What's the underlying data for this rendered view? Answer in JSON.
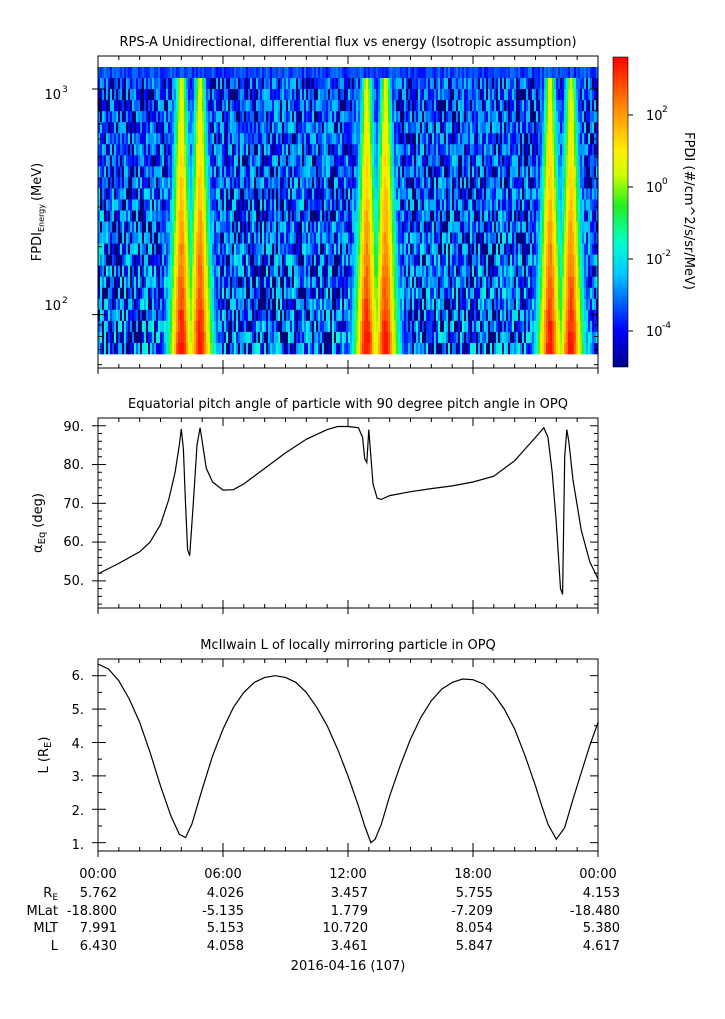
{
  "panels": {
    "spectrogram": {
      "title": "RPS-A Unidirectional, differential flux vs energy (Isotropic assumption)",
      "ylabel_main": "FPDI",
      "ylabel_sub": "Energy",
      "ylabel_unit": "(MeV)",
      "ytick_labels": [
        "10",
        "10"
      ],
      "ytick_exps": [
        "3",
        "2"
      ],
      "colorbar_label": "FPDI (#/cm^2/s/sr/MeV)",
      "colorbar_tick_base": [
        "10",
        "10",
        "10",
        "10"
      ],
      "colorbar_tick_exps": [
        "2",
        "0",
        "-2",
        "-4"
      ]
    },
    "pitch": {
      "title": "Equatorial pitch angle of particle with 90 degree pitch angle in OPQ",
      "ylabel": "α",
      "ylabel_sub": "Eq",
      "ylabel_unit": "(deg)",
      "ytick_labels": [
        "90.",
        "80.",
        "70.",
        "60.",
        "50."
      ]
    },
    "lshell": {
      "title": "McIlwain L of locally mirroring particle in OPQ",
      "ylabel": "L (R",
      "ylabel_sub": "E",
      "ylabel_end": ")",
      "ytick_labels": [
        "6.",
        "5.",
        "4.",
        "3.",
        "2.",
        "1."
      ]
    }
  },
  "xaxis": {
    "tick_labels": [
      "00:00",
      "06:00",
      "12:00",
      "18:00",
      "00:00"
    ],
    "date_label": "2016-04-16 (107)"
  },
  "ephemeris": {
    "rows": [
      {
        "label": "R",
        "label_sub": "E",
        "values": [
          "5.762",
          "4.026",
          "3.457",
          "5.755",
          "4.153"
        ]
      },
      {
        "label": "MLat",
        "label_sub": "",
        "values": [
          "-18.800",
          "-5.135",
          "1.779",
          "-7.209",
          "-18.480"
        ]
      },
      {
        "label": "MLT",
        "label_sub": "",
        "values": [
          "7.991",
          "5.153",
          "10.720",
          "8.054",
          "5.380"
        ]
      },
      {
        "label": "L",
        "label_sub": "",
        "values": [
          "6.430",
          "4.058",
          "3.461",
          "5.847",
          "4.617"
        ]
      }
    ]
  },
  "chart_data": [
    {
      "type": "heatmap",
      "title": "RPS-A Unidirectional, differential flux vs energy (Isotropic assumption)",
      "xlabel": "",
      "ylabel": "FPDI Energy (MeV)",
      "yscale": "log",
      "ylim": [
        58,
        1400
      ],
      "xlim_hours": [
        0,
        24
      ],
      "colorbar": {
        "label": "FPDI (#/cm^2/s/sr/MeV)",
        "scale": "log",
        "range": [
          1e-05,
          1000.0
        ],
        "ticks": [
          "10^2",
          "10^0",
          "10^-2",
          "10^-4"
        ]
      },
      "flux_peaks_hours": [
        4.0,
        4.9,
        12.9,
        13.8,
        21.7,
        22.7
      ],
      "colors": {
        "high": "#ff2000",
        "mid": "#ffee00",
        "green": "#22dd22",
        "cyan": "#00ffee",
        "low": "#0000b0"
      }
    },
    {
      "type": "line",
      "title": "Equatorial pitch angle of particle with 90 degree pitch angle in OPQ",
      "xlabel": "",
      "ylabel": "α Eq (deg)",
      "ylim": [
        43,
        92
      ],
      "series": [
        {
          "x": [
            0,
            1,
            2,
            2.5,
            3,
            3.4,
            3.7,
            3.9,
            4.0,
            4.1,
            4.2,
            4.3,
            4.4,
            4.6,
            4.75,
            4.9,
            5.0,
            5.2,
            5.5,
            6.0,
            6.5,
            7,
            8,
            9,
            10,
            11,
            11.5,
            12.0,
            12.5,
            12.7,
            12.8,
            12.9,
            13.0,
            13.1,
            13.2,
            13.4,
            13.6,
            14,
            15,
            16,
            17,
            18,
            19,
            20,
            20.5,
            21,
            21.4,
            21.6,
            21.8,
            22.0,
            22.2,
            22.3,
            22.4,
            22.5,
            22.6,
            22.8,
            23.2,
            23.6,
            24
          ],
          "y": [
            51.8,
            54.5,
            57.5,
            60,
            64.5,
            71,
            78,
            85,
            89.2,
            84,
            70,
            58,
            56.5,
            72,
            85,
            89.5,
            86,
            79,
            75.5,
            73.4,
            73.5,
            75,
            79,
            83,
            86.5,
            89,
            89.8,
            89.8,
            89.5,
            87,
            81.5,
            80.5,
            89,
            82,
            75,
            71.3,
            71,
            72,
            73,
            73.8,
            74.5,
            75.5,
            77,
            81,
            84,
            87,
            89.5,
            87,
            78,
            65,
            48,
            46.5,
            82,
            89,
            86,
            76,
            63,
            55,
            50.5
          ]
        }
      ]
    },
    {
      "type": "line",
      "title": "McIlwain L of locally mirroring particle in OPQ",
      "xlabel": "",
      "ylabel": "L (RE)",
      "ylim": [
        0.75,
        6.5
      ],
      "series": [
        {
          "x": [
            0,
            0.5,
            1,
            1.5,
            2,
            2.5,
            3,
            3.5,
            3.9,
            4.2,
            4.5,
            5,
            5.5,
            6,
            6.5,
            7,
            7.5,
            8,
            8.5,
            9,
            9.5,
            10,
            10.5,
            11,
            11.5,
            12,
            12.5,
            12.8,
            13.1,
            13.3,
            13.6,
            14,
            14.5,
            15,
            15.5,
            16,
            16.5,
            17,
            17.5,
            18,
            18.5,
            19,
            19.5,
            20,
            20.5,
            21,
            21.3,
            21.6,
            22,
            22.4,
            22.8,
            23.2,
            23.6,
            24
          ],
          "y": [
            6.35,
            6.2,
            5.85,
            5.3,
            4.6,
            3.7,
            2.7,
            1.8,
            1.25,
            1.15,
            1.55,
            2.6,
            3.6,
            4.4,
            5.05,
            5.5,
            5.8,
            5.95,
            6.0,
            5.95,
            5.8,
            5.5,
            5.05,
            4.5,
            3.8,
            3.0,
            2.1,
            1.5,
            1.0,
            1.1,
            1.55,
            2.4,
            3.3,
            4.1,
            4.75,
            5.25,
            5.6,
            5.8,
            5.9,
            5.88,
            5.75,
            5.45,
            5.0,
            4.4,
            3.6,
            2.7,
            2.1,
            1.55,
            1.1,
            1.45,
            2.3,
            3.1,
            3.9,
            4.6
          ]
        }
      ]
    }
  ]
}
